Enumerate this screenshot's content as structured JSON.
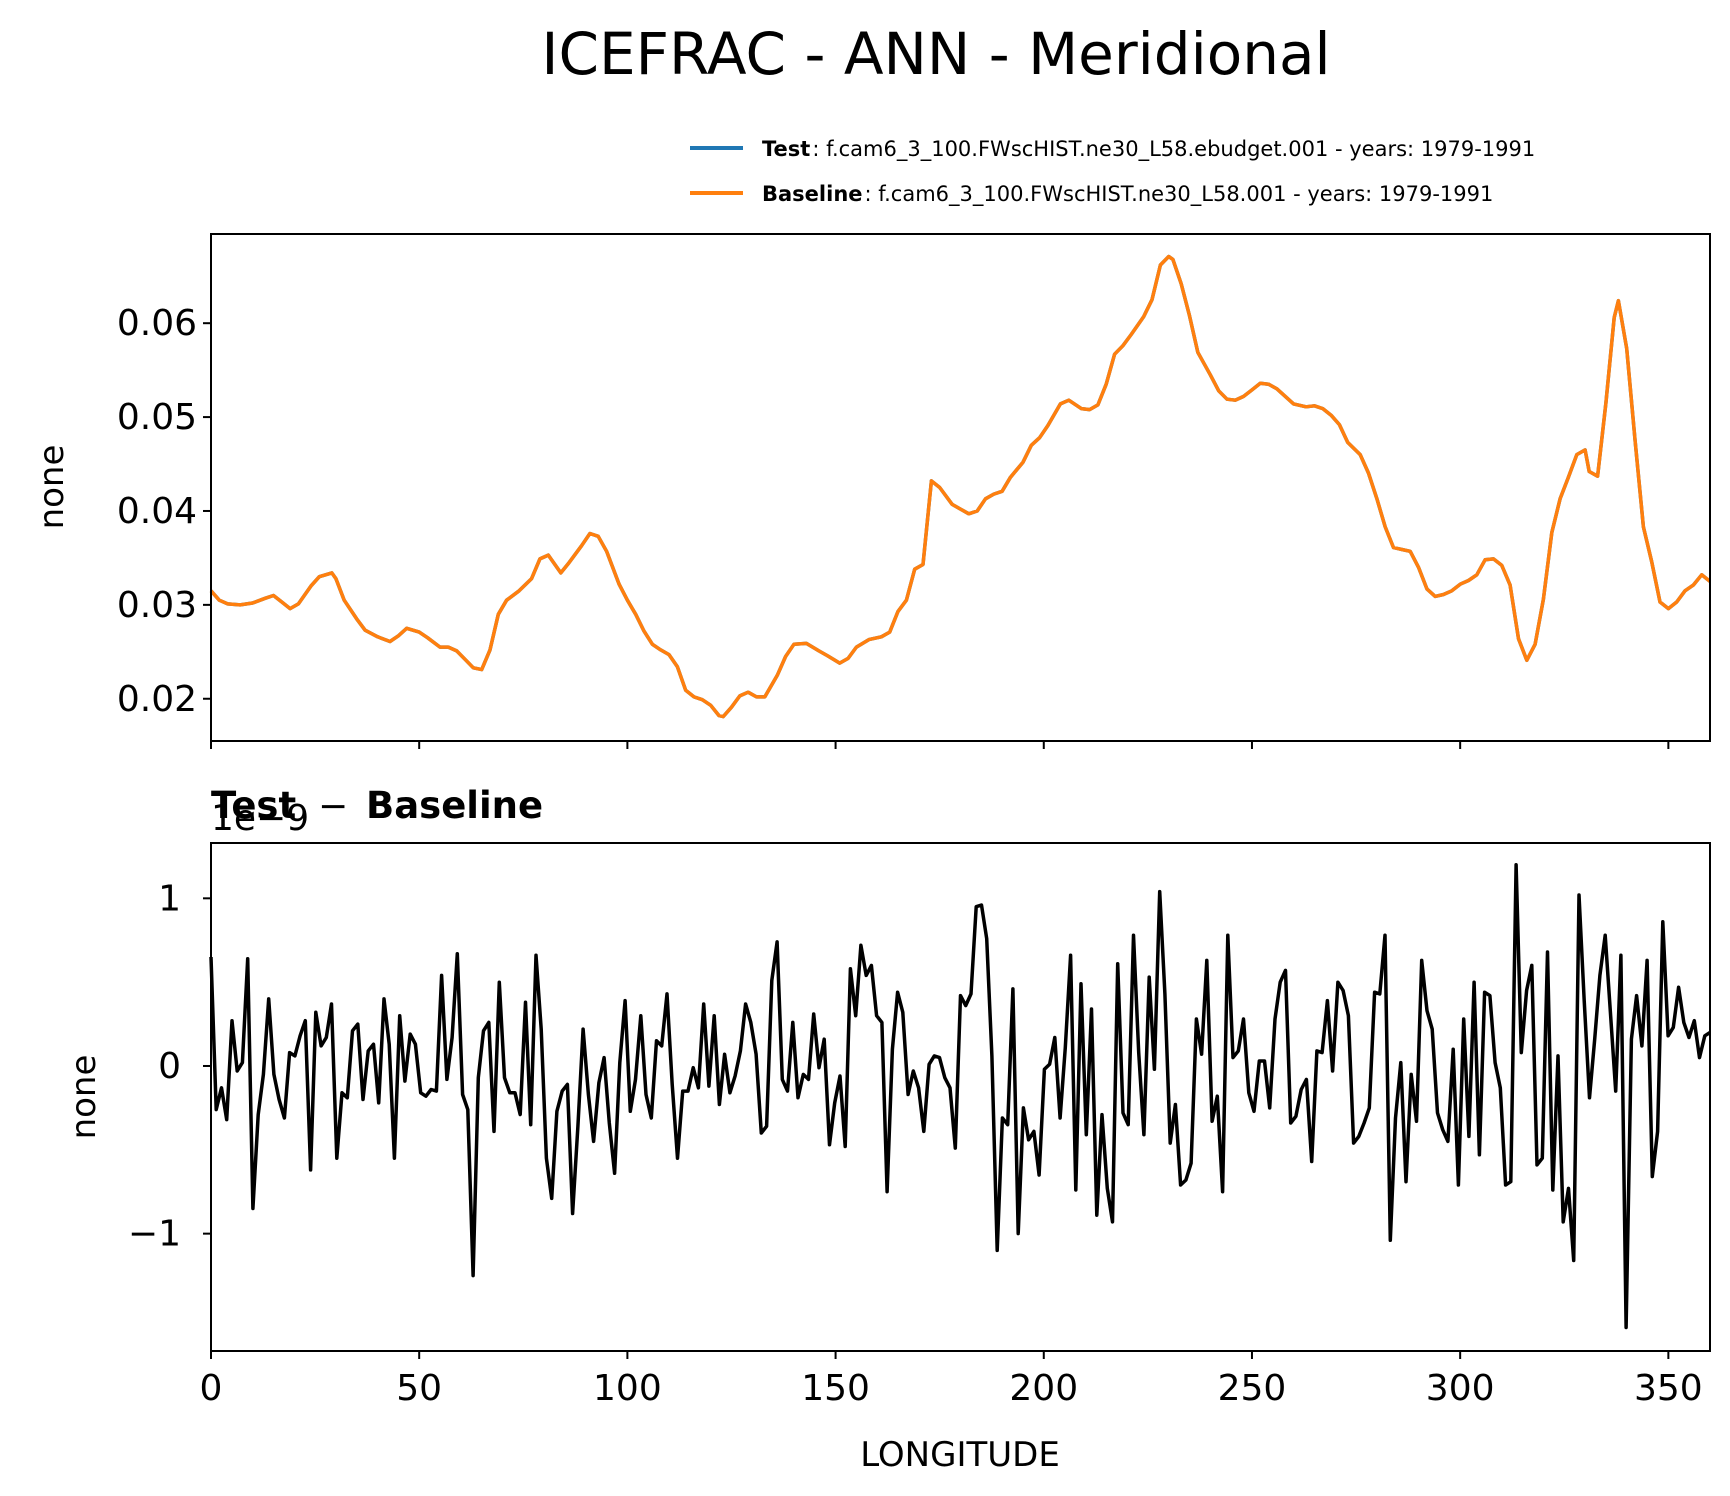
{
  "chart_data": [
    {
      "type": "line",
      "title": "ICEFRAC - ANN - Meridional",
      "xlabel": "",
      "ylabel": "none",
      "xlim": [
        0,
        360
      ],
      "ylim": [
        0.0155,
        0.0695
      ],
      "x_ticks": [
        0,
        50,
        100,
        150,
        200,
        250,
        300,
        350
      ],
      "y_ticks": [
        0.02,
        0.03,
        0.04,
        0.05,
        0.06
      ],
      "y_tick_labels": [
        "0.02",
        "0.03",
        "0.04",
        "0.05",
        "0.06"
      ],
      "legend": {
        "placement": "above-right",
        "entries": [
          {
            "name": "Test",
            "desc": ": f.cam6_3_100.FWscHIST.ne30_L58.ebudget.001 - years: 1979-1991",
            "color": "#1f77b4"
          },
          {
            "name": "Baseline",
            "desc": ": f.cam6_3_100.FWscHIST.ne30_L58.001 - years: 1979-1991",
            "color": "#ff7f0e"
          }
        ]
      },
      "series": [
        {
          "name": "Baseline",
          "color": "#ff7f0e",
          "points": [
            [
              0,
              0.0315
            ],
            [
              2,
              0.0305
            ],
            [
              4,
              0.0301
            ],
            [
              7,
              0.03
            ],
            [
              10,
              0.0302
            ],
            [
              13,
              0.0307
            ],
            [
              15,
              0.031
            ],
            [
              17,
              0.0303
            ],
            [
              19,
              0.0296
            ],
            [
              21,
              0.0301
            ],
            [
              24,
              0.032
            ],
            [
              26,
              0.033
            ],
            [
              29,
              0.0334
            ],
            [
              30,
              0.0328
            ],
            [
              32,
              0.0305
            ],
            [
              35,
              0.0285
            ],
            [
              37,
              0.0273
            ],
            [
              40,
              0.0266
            ],
            [
              43,
              0.0261
            ],
            [
              45,
              0.0267
            ],
            [
              47,
              0.0275
            ],
            [
              50,
              0.0271
            ],
            [
              52,
              0.0265
            ],
            [
              55,
              0.0255
            ],
            [
              57,
              0.0255
            ],
            [
              59,
              0.0251
            ],
            [
              61,
              0.0242
            ],
            [
              63,
              0.0233
            ],
            [
              65,
              0.0231
            ],
            [
              67,
              0.0252
            ],
            [
              69,
              0.029
            ],
            [
              71,
              0.0305
            ],
            [
              74,
              0.0315
            ],
            [
              77,
              0.0328
            ],
            [
              79,
              0.0349
            ],
            [
              81,
              0.0353
            ],
            [
              84,
              0.0334
            ],
            [
              86,
              0.0345
            ],
            [
              89,
              0.0363
            ],
            [
              91,
              0.0376
            ],
            [
              93,
              0.0373
            ],
            [
              95,
              0.0357
            ],
            [
              98,
              0.0322
            ],
            [
              100,
              0.0305
            ],
            [
              102,
              0.029
            ],
            [
              104,
              0.0272
            ],
            [
              106,
              0.0258
            ],
            [
              108,
              0.0252
            ],
            [
              110,
              0.0247
            ],
            [
              112,
              0.0234
            ],
            [
              114,
              0.0209
            ],
            [
              116,
              0.0202
            ],
            [
              118,
              0.0199
            ],
            [
              120,
              0.0193
            ],
            [
              122,
              0.0182
            ],
            [
              123,
              0.0181
            ],
            [
              125,
              0.0191
            ],
            [
              127,
              0.0203
            ],
            [
              129,
              0.0207
            ],
            [
              131,
              0.0202
            ],
            [
              133,
              0.0202
            ],
            [
              136,
              0.0225
            ],
            [
              138,
              0.0245
            ],
            [
              140,
              0.0258
            ],
            [
              143,
              0.0259
            ],
            [
              146,
              0.0251
            ],
            [
              148,
              0.0246
            ],
            [
              151,
              0.0238
            ],
            [
              153,
              0.0243
            ],
            [
              155,
              0.0255
            ],
            [
              158,
              0.0263
            ],
            [
              161,
              0.0266
            ],
            [
              163,
              0.0271
            ],
            [
              165,
              0.0293
            ],
            [
              167,
              0.0305
            ],
            [
              169,
              0.0338
            ],
            [
              171,
              0.0343
            ],
            [
              173,
              0.0432
            ],
            [
              175,
              0.0425
            ],
            [
              178,
              0.0407
            ],
            [
              180,
              0.0402
            ],
            [
              182,
              0.0397
            ],
            [
              184,
              0.04
            ],
            [
              186,
              0.0413
            ],
            [
              188,
              0.0418
            ],
            [
              190,
              0.0421
            ],
            [
              192,
              0.0436
            ],
            [
              195,
              0.0452
            ],
            [
              197,
              0.047
            ],
            [
              199,
              0.0478
            ],
            [
              201,
              0.0491
            ],
            [
              204,
              0.0514
            ],
            [
              206,
              0.0518
            ],
            [
              209,
              0.0509
            ],
            [
              211,
              0.0508
            ],
            [
              213,
              0.0513
            ],
            [
              215,
              0.0535
            ],
            [
              217,
              0.0567
            ],
            [
              219,
              0.0576
            ],
            [
              221,
              0.0588
            ],
            [
              224,
              0.0607
            ],
            [
              226,
              0.0625
            ],
            [
              228,
              0.0662
            ],
            [
              230,
              0.0671
            ],
            [
              231,
              0.0668
            ],
            [
              233,
              0.0642
            ],
            [
              235,
              0.0608
            ],
            [
              237,
              0.0569
            ],
            [
              240,
              0.0545
            ],
            [
              242,
              0.0528
            ],
            [
              244,
              0.0519
            ],
            [
              246,
              0.0518
            ],
            [
              248,
              0.0522
            ],
            [
              250,
              0.0529
            ],
            [
              252,
              0.0536
            ],
            [
              254,
              0.0535
            ],
            [
              256,
              0.053
            ],
            [
              258,
              0.0522
            ],
            [
              260,
              0.0514
            ],
            [
              263,
              0.0511
            ],
            [
              265,
              0.0512
            ],
            [
              267,
              0.0509
            ],
            [
              269,
              0.0502
            ],
            [
              271,
              0.0492
            ],
            [
              273,
              0.0473
            ],
            [
              276,
              0.046
            ],
            [
              278,
              0.044
            ],
            [
              280,
              0.0413
            ],
            [
              282,
              0.0383
            ],
            [
              284,
              0.0361
            ],
            [
              286,
              0.0359
            ],
            [
              288,
              0.0357
            ],
            [
              290,
              0.034
            ],
            [
              292,
              0.0317
            ],
            [
              294,
              0.0309
            ],
            [
              296,
              0.0311
            ],
            [
              298,
              0.0315
            ],
            [
              300,
              0.0322
            ],
            [
              302,
              0.0326
            ],
            [
              304,
              0.0332
            ],
            [
              306,
              0.0348
            ],
            [
              308,
              0.0349
            ],
            [
              310,
              0.0342
            ],
            [
              312,
              0.0321
            ],
            [
              314,
              0.0264
            ],
            [
              316,
              0.0241
            ],
            [
              318,
              0.0258
            ],
            [
              320,
              0.0306
            ],
            [
              322,
              0.0377
            ],
            [
              324,
              0.0413
            ],
            [
              326,
              0.0436
            ],
            [
              328,
              0.046
            ],
            [
              330,
              0.0465
            ],
            [
              331,
              0.0442
            ],
            [
              333,
              0.0437
            ],
            [
              335,
              0.0515
            ],
            [
              337,
              0.0606
            ],
            [
              338,
              0.0624
            ],
            [
              340,
              0.0573
            ],
            [
              342,
              0.0476
            ],
            [
              344,
              0.0383
            ],
            [
              346,
              0.0346
            ],
            [
              348,
              0.0303
            ],
            [
              350,
              0.0296
            ],
            [
              352,
              0.0303
            ],
            [
              354,
              0.0315
            ],
            [
              356,
              0.0321
            ],
            [
              358,
              0.0332
            ],
            [
              360,
              0.0325
            ]
          ]
        },
        {
          "name": "Test",
          "color": "#1f77b4",
          "points": "identical to Baseline (hidden beneath)"
        }
      ]
    },
    {
      "type": "line",
      "title": "Test − Baseline",
      "title_parts": {
        "left": "Test",
        "op": "−",
        "right": "Baseline"
      },
      "offset_text": "1e−9",
      "xlabel": "LONGITUDE",
      "ylabel": "none",
      "xlim": [
        0,
        360
      ],
      "ylim": [
        -1.7,
        1.33
      ],
      "x_ticks": [
        0,
        50,
        100,
        150,
        200,
        250,
        300,
        350
      ],
      "x_tick_labels": [
        "0",
        "50",
        "100",
        "150",
        "200",
        "250",
        "300",
        "350"
      ],
      "y_ticks": [
        -1,
        0,
        1
      ],
      "y_tick_labels": [
        "−1",
        "0",
        "1"
      ],
      "series": [
        {
          "name": "Test - Baseline",
          "color": "#000000",
          "values": [
            0.65,
            -0.26,
            -0.13,
            -0.32,
            0.27,
            -0.03,
            0.02,
            0.64,
            -0.85,
            -0.29,
            -0.05,
            0.4,
            -0.05,
            -0.2,
            -0.31,
            0.08,
            0.06,
            0.18,
            0.27,
            -0.62,
            0.32,
            0.12,
            0.17,
            0.37,
            -0.55,
            -0.16,
            -0.19,
            0.21,
            0.25,
            -0.2,
            0.09,
            0.13,
            -0.22,
            0.4,
            0.13,
            -0.55,
            0.3,
            -0.09,
            0.19,
            0.13,
            -0.16,
            -0.18,
            -0.14,
            -0.15,
            0.54,
            -0.08,
            0.17,
            0.67,
            -0.17,
            -0.26,
            -1.25,
            -0.07,
            0.21,
            0.26,
            -0.39,
            0.5,
            -0.07,
            -0.16,
            -0.16,
            -0.29,
            0.38,
            -0.35,
            0.66,
            0.22,
            -0.55,
            -0.79,
            -0.27,
            -0.15,
            -0.11,
            -0.88,
            -0.36,
            0.22,
            -0.17,
            -0.45,
            -0.1,
            0.05,
            -0.34,
            -0.64,
            0.02,
            0.39,
            -0.27,
            -0.08,
            0.3,
            -0.17,
            -0.31,
            0.15,
            0.12,
            0.43,
            -0.11,
            -0.55,
            -0.15,
            -0.15,
            -0.01,
            -0.13,
            0.37,
            -0.12,
            0.3,
            -0.23,
            0.07,
            -0.16,
            -0.06,
            0.09,
            0.37,
            0.26,
            0.07,
            -0.4,
            -0.36,
            0.51,
            0.74,
            -0.08,
            -0.15,
            0.26,
            -0.19,
            -0.05,
            -0.08,
            0.31,
            -0.01,
            0.16,
            -0.47,
            -0.22,
            -0.06,
            -0.48,
            0.58,
            0.3,
            0.72,
            0.54,
            0.6,
            0.3,
            0.26,
            -0.75,
            0.1,
            0.44,
            0.32,
            -0.17,
            -0.03,
            -0.13,
            -0.39,
            0.01,
            0.06,
            0.05,
            -0.07,
            -0.13,
            -0.49,
            0.42,
            0.36,
            0.43,
            0.95,
            0.96,
            0.76,
            0.06,
            -1.1,
            -0.31,
            -0.35,
            0.46,
            -1.0,
            -0.25,
            -0.44,
            -0.39,
            -0.65,
            -0.02,
            0.01,
            0.17,
            -0.31,
            0.11,
            0.66,
            -0.74,
            0.49,
            -0.41,
            0.34,
            -0.89,
            -0.29,
            -0.73,
            -0.93,
            0.61,
            -0.28,
            -0.35,
            0.78,
            0.08,
            -0.41,
            0.53,
            -0.02,
            1.04,
            0.43,
            -0.46,
            -0.23,
            -0.71,
            -0.68,
            -0.58,
            0.28,
            0.07,
            0.63,
            -0.33,
            -0.18,
            -0.75,
            0.78,
            0.05,
            0.09,
            0.28,
            -0.16,
            -0.27,
            0.03,
            0.03,
            -0.25,
            0.28,
            0.5,
            0.57,
            -0.34,
            -0.3,
            -0.14,
            -0.08,
            -0.57,
            0.09,
            0.08,
            0.39,
            -0.03,
            0.5,
            0.45,
            0.3,
            -0.46,
            -0.42,
            -0.34,
            -0.25,
            0.44,
            0.43,
            0.78,
            -1.04,
            -0.31,
            0.02,
            -0.69,
            -0.05,
            -0.33,
            0.63,
            0.33,
            0.22,
            -0.28,
            -0.38,
            -0.45,
            0.1,
            -0.71,
            0.28,
            -0.42,
            0.5,
            -0.53,
            0.44,
            0.42,
            0.02,
            -0.13,
            -0.71,
            -0.69,
            1.2,
            0.08,
            0.45,
            0.6,
            -0.59,
            -0.55,
            0.68,
            -0.74,
            0.06,
            -0.93,
            -0.73,
            -1.16,
            1.02,
            0.39,
            -0.19,
            0.16,
            0.54,
            0.78,
            0.32,
            -0.15,
            0.66,
            -1.56,
            0.16,
            0.42,
            0.12,
            0.63,
            -0.66,
            -0.39,
            0.86,
            0.18,
            0.23,
            0.47,
            0.26,
            0.17,
            0.27,
            0.05,
            0.18,
            0.2
          ]
        }
      ]
    }
  ]
}
